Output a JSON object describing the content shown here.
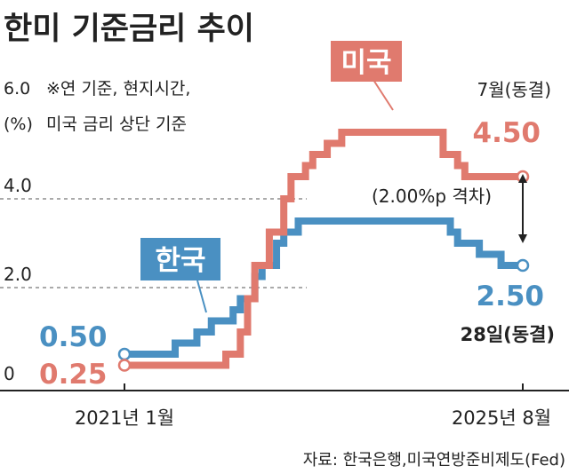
{
  "chart_data": {
    "type": "line",
    "step": true,
    "title": "한미 기준금리 추이",
    "notes": [
      "※연 기준, 현지시간,",
      "미국 금리 상단 기준"
    ],
    "y_unit_label": "(%)",
    "ylim": [
      0,
      6.0
    ],
    "yticks": [
      {
        "value": 0,
        "label": "0"
      },
      {
        "value": 2.0,
        "label": "2.0"
      },
      {
        "value": 4.0,
        "label": "4.0"
      },
      {
        "value": 6.0,
        "label": "6.0"
      }
    ],
    "xlim": [
      "2021-01",
      "2025-08"
    ],
    "x_labels": [
      {
        "label": "2021년 1월",
        "date": "2021-01"
      },
      {
        "label": "2025년 8월",
        "date": "2025-08"
      }
    ],
    "series": [
      {
        "name": "한국",
        "color": "#4a90c2",
        "start_label": "0.50",
        "end_label": "2.50",
        "end_note": "28일(동결)",
        "points": [
          [
            "2021-01",
            0.5
          ],
          [
            "2021-08",
            0.75
          ],
          [
            "2021-11",
            1.0
          ],
          [
            "2022-01",
            1.25
          ],
          [
            "2022-04",
            1.5
          ],
          [
            "2022-05",
            1.75
          ],
          [
            "2022-07",
            2.25
          ],
          [
            "2022-08",
            2.5
          ],
          [
            "2022-10",
            3.0
          ],
          [
            "2022-11",
            3.25
          ],
          [
            "2023-01",
            3.5
          ],
          [
            "2024-10",
            3.25
          ],
          [
            "2024-11",
            3.0
          ],
          [
            "2025-02",
            2.75
          ],
          [
            "2025-05",
            2.5
          ],
          [
            "2025-08",
            2.5
          ]
        ]
      },
      {
        "name": "미국",
        "color": "#e07a6e",
        "start_label": "0.25",
        "end_label": "4.50",
        "end_note": "7월(동결)",
        "points": [
          [
            "2021-01",
            0.25
          ],
          [
            "2022-03",
            0.5
          ],
          [
            "2022-05",
            1.0
          ],
          [
            "2022-06",
            1.75
          ],
          [
            "2022-07",
            2.5
          ],
          [
            "2022-09",
            3.25
          ],
          [
            "2022-11",
            4.0
          ],
          [
            "2022-12",
            4.5
          ],
          [
            "2023-02",
            4.75
          ],
          [
            "2023-03",
            5.0
          ],
          [
            "2023-05",
            5.25
          ],
          [
            "2023-07",
            5.5
          ],
          [
            "2024-09",
            5.0
          ],
          [
            "2024-11",
            4.75
          ],
          [
            "2024-12",
            4.5
          ],
          [
            "2025-08",
            4.5
          ]
        ]
      }
    ],
    "annotations": {
      "gap": "(2.00%p 격차)"
    }
  },
  "source": "자료: 한국은행,미국연방준비제도(Fed)",
  "colors": {
    "korea": "#4a90c2",
    "usa": "#e07a6e",
    "axis": "#222222",
    "grid": "#555555"
  }
}
